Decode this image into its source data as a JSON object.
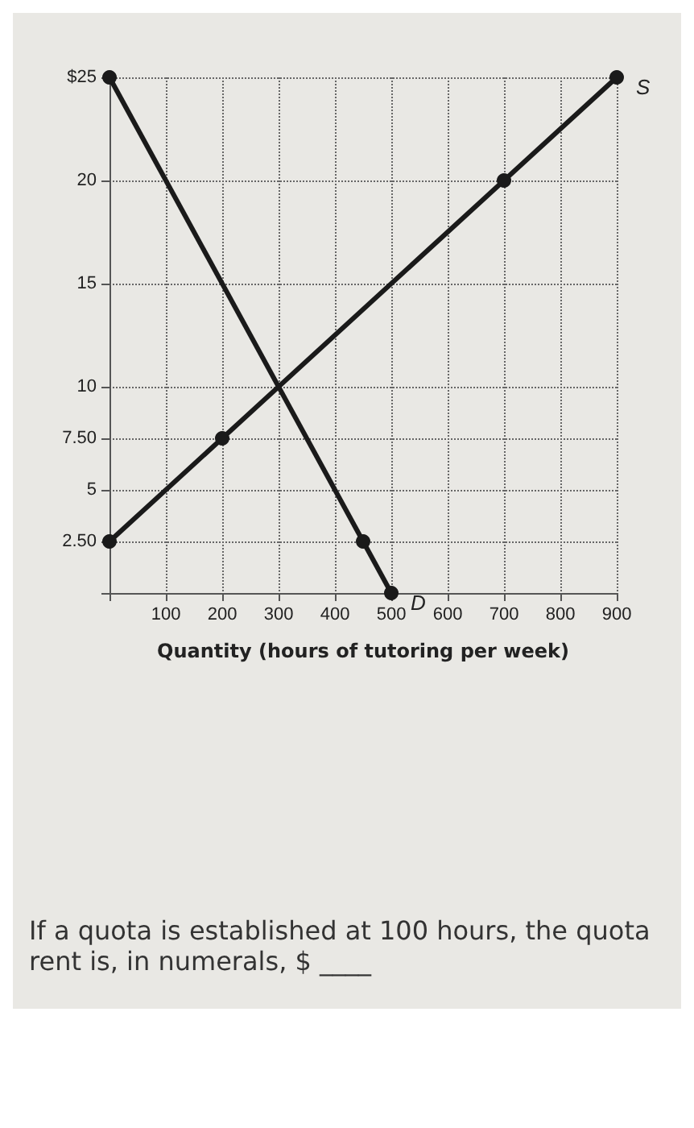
{
  "chart_data": {
    "type": "line",
    "xlabel": "Quantity (hours of tutoring per week)",
    "series": [
      {
        "name": "S",
        "color": "#1a1a1a",
        "x": [
          0,
          200,
          700,
          900
        ],
        "values": [
          2.5,
          7.5,
          20,
          25
        ]
      },
      {
        "name": "D",
        "color": "#1a1a1a",
        "x": [
          0,
          450,
          500
        ],
        "values": [
          25,
          2.5,
          0
        ]
      }
    ],
    "xlim": [
      0,
      900
    ],
    "xticks": [
      {
        "value": 0,
        "label": null
      },
      100,
      200,
      300,
      400,
      500,
      600,
      700,
      800,
      900
    ],
    "ylim": [
      0,
      25
    ],
    "yticks": [
      {
        "value": 0,
        "label": null
      },
      {
        "value": 2.5,
        "label": "2.50"
      },
      5,
      {
        "value": 7.5,
        "label": "7.50"
      },
      10,
      15,
      20,
      {
        "value": 25,
        "label": "$25"
      }
    ],
    "grid": true,
    "marker": "circle",
    "line_style": "solid",
    "legend": false,
    "annotations": [
      "If a quota is established at 100 hours, the quota rent is, in numerals, $ ____"
    ]
  }
}
